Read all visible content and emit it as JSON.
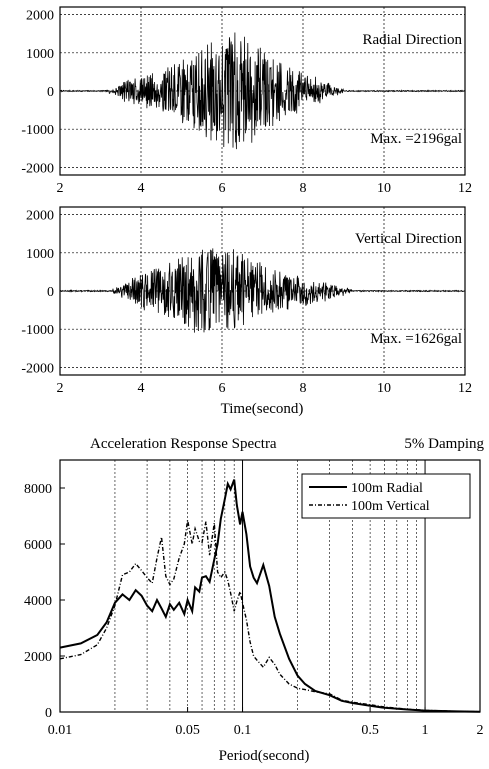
{
  "chart_data": [
    {
      "type": "line",
      "panel": "radial",
      "annotation": "Radial Direction",
      "max_label": "Max. =2196gal",
      "xlim": [
        2,
        12
      ],
      "ylim": [
        -2200,
        2200
      ],
      "x_ticks": [
        2,
        4,
        6,
        8,
        10,
        12
      ],
      "x_tick_labels": [
        "2",
        "4",
        "6",
        "8",
        "10",
        "12"
      ],
      "y_ticks": [
        2000,
        1000,
        0,
        -1000,
        -2000
      ],
      "y_tick_labels": [
        "2000",
        "1000",
        "0",
        "-1000",
        "-2000"
      ],
      "grid": true,
      "signal": {
        "start": 3.2,
        "end": 9.0,
        "peak_time": 6.2,
        "width": 1.2,
        "amp": 1500,
        "seed": 7
      }
    },
    {
      "type": "line",
      "panel": "vertical",
      "annotation": "Vertical Direction",
      "max_label": "Max. =1626gal",
      "xlabel": "Time(second)",
      "xlim": [
        2,
        12
      ],
      "ylim": [
        -2200,
        2200
      ],
      "x_ticks": [
        2,
        4,
        6,
        8,
        10,
        12
      ],
      "x_tick_labels": [
        "2",
        "4",
        "6",
        "8",
        "10",
        "12"
      ],
      "y_ticks": [
        2000,
        1000,
        0,
        -1000,
        -2000
      ],
      "y_tick_labels": [
        "2000",
        "1000",
        "0",
        "-1000",
        "-2000"
      ],
      "grid": true,
      "signal": {
        "start": 3.3,
        "end": 9.2,
        "peak_time": 5.8,
        "width": 1.4,
        "amp": 1150,
        "seed": 13
      }
    },
    {
      "type": "line",
      "panel": "spectra",
      "title": "Acceleration Response Spectra",
      "subtitle": "5% Damping",
      "xlabel": "Period(second)",
      "xscale": "log",
      "xlim": [
        0.01,
        2
      ],
      "ylim": [
        0,
        9000
      ],
      "x_ticks": [
        0.01,
        0.05,
        0.1,
        0.5,
        1,
        2
      ],
      "x_tick_labels": [
        "0.01",
        "0.05",
        "0.1",
        "0.5",
        "1",
        "2"
      ],
      "y_ticks": [
        0,
        2000,
        4000,
        6000,
        8000
      ],
      "y_tick_labels": [
        "0",
        "2000",
        "4000",
        "6000",
        "8000"
      ],
      "grid": "log-minor-vertical",
      "legend_position": "top-right",
      "series": [
        {
          "name": "100m Radial",
          "style": "solid",
          "x": [
            0.01,
            0.013,
            0.016,
            0.018,
            0.02,
            0.022,
            0.024,
            0.026,
            0.028,
            0.03,
            0.032,
            0.034,
            0.036,
            0.038,
            0.04,
            0.042,
            0.045,
            0.048,
            0.05,
            0.053,
            0.055,
            0.058,
            0.06,
            0.063,
            0.066,
            0.07,
            0.073,
            0.076,
            0.08,
            0.083,
            0.086,
            0.09,
            0.093,
            0.097,
            0.1,
            0.105,
            0.11,
            0.115,
            0.12,
            0.13,
            0.14,
            0.15,
            0.16,
            0.18,
            0.2,
            0.22,
            0.25,
            0.3,
            0.35,
            0.4,
            0.5,
            0.6,
            0.8,
            1,
            1.5,
            2
          ],
          "y": [
            2300,
            2450,
            2750,
            3200,
            3900,
            4200,
            4000,
            4350,
            4150,
            3800,
            3600,
            4000,
            3700,
            3400,
            3850,
            3650,
            3900,
            3500,
            4000,
            3600,
            4450,
            4300,
            4800,
            4850,
            4650,
            5450,
            6000,
            6900,
            7600,
            8150,
            7950,
            8300,
            7400,
            6700,
            7150,
            6350,
            5200,
            4800,
            4600,
            5250,
            4500,
            3400,
            2800,
            1900,
            1300,
            1000,
            750,
            600,
            400,
            320,
            220,
            150,
            90,
            50,
            20,
            10
          ]
        },
        {
          "name": "100m Vertical",
          "style": "dashed",
          "x": [
            0.01,
            0.013,
            0.016,
            0.018,
            0.02,
            0.022,
            0.024,
            0.026,
            0.028,
            0.03,
            0.032,
            0.034,
            0.036,
            0.038,
            0.04,
            0.042,
            0.045,
            0.048,
            0.05,
            0.053,
            0.055,
            0.058,
            0.06,
            0.063,
            0.066,
            0.07,
            0.073,
            0.076,
            0.08,
            0.083,
            0.086,
            0.09,
            0.093,
            0.097,
            0.1,
            0.105,
            0.11,
            0.115,
            0.12,
            0.13,
            0.14,
            0.15,
            0.16,
            0.18,
            0.2,
            0.22,
            0.25,
            0.3,
            0.35,
            0.4,
            0.5,
            0.6,
            0.8,
            1,
            1.5,
            2
          ],
          "y": [
            1900,
            2050,
            2400,
            3000,
            3800,
            4900,
            5000,
            5300,
            5050,
            4800,
            4600,
            5500,
            6250,
            4850,
            4550,
            4750,
            5500,
            6000,
            6850,
            6000,
            6550,
            6100,
            6050,
            6800,
            5600,
            6750,
            5000,
            4800,
            5000,
            4700,
            4250,
            3600,
            3950,
            4300,
            3900,
            3300,
            2500,
            2000,
            1850,
            1600,
            1950,
            1700,
            1350,
            1000,
            850,
            800,
            720,
            650,
            420,
            350,
            260,
            180,
            100,
            60,
            25,
            10
          ]
        }
      ]
    }
  ]
}
